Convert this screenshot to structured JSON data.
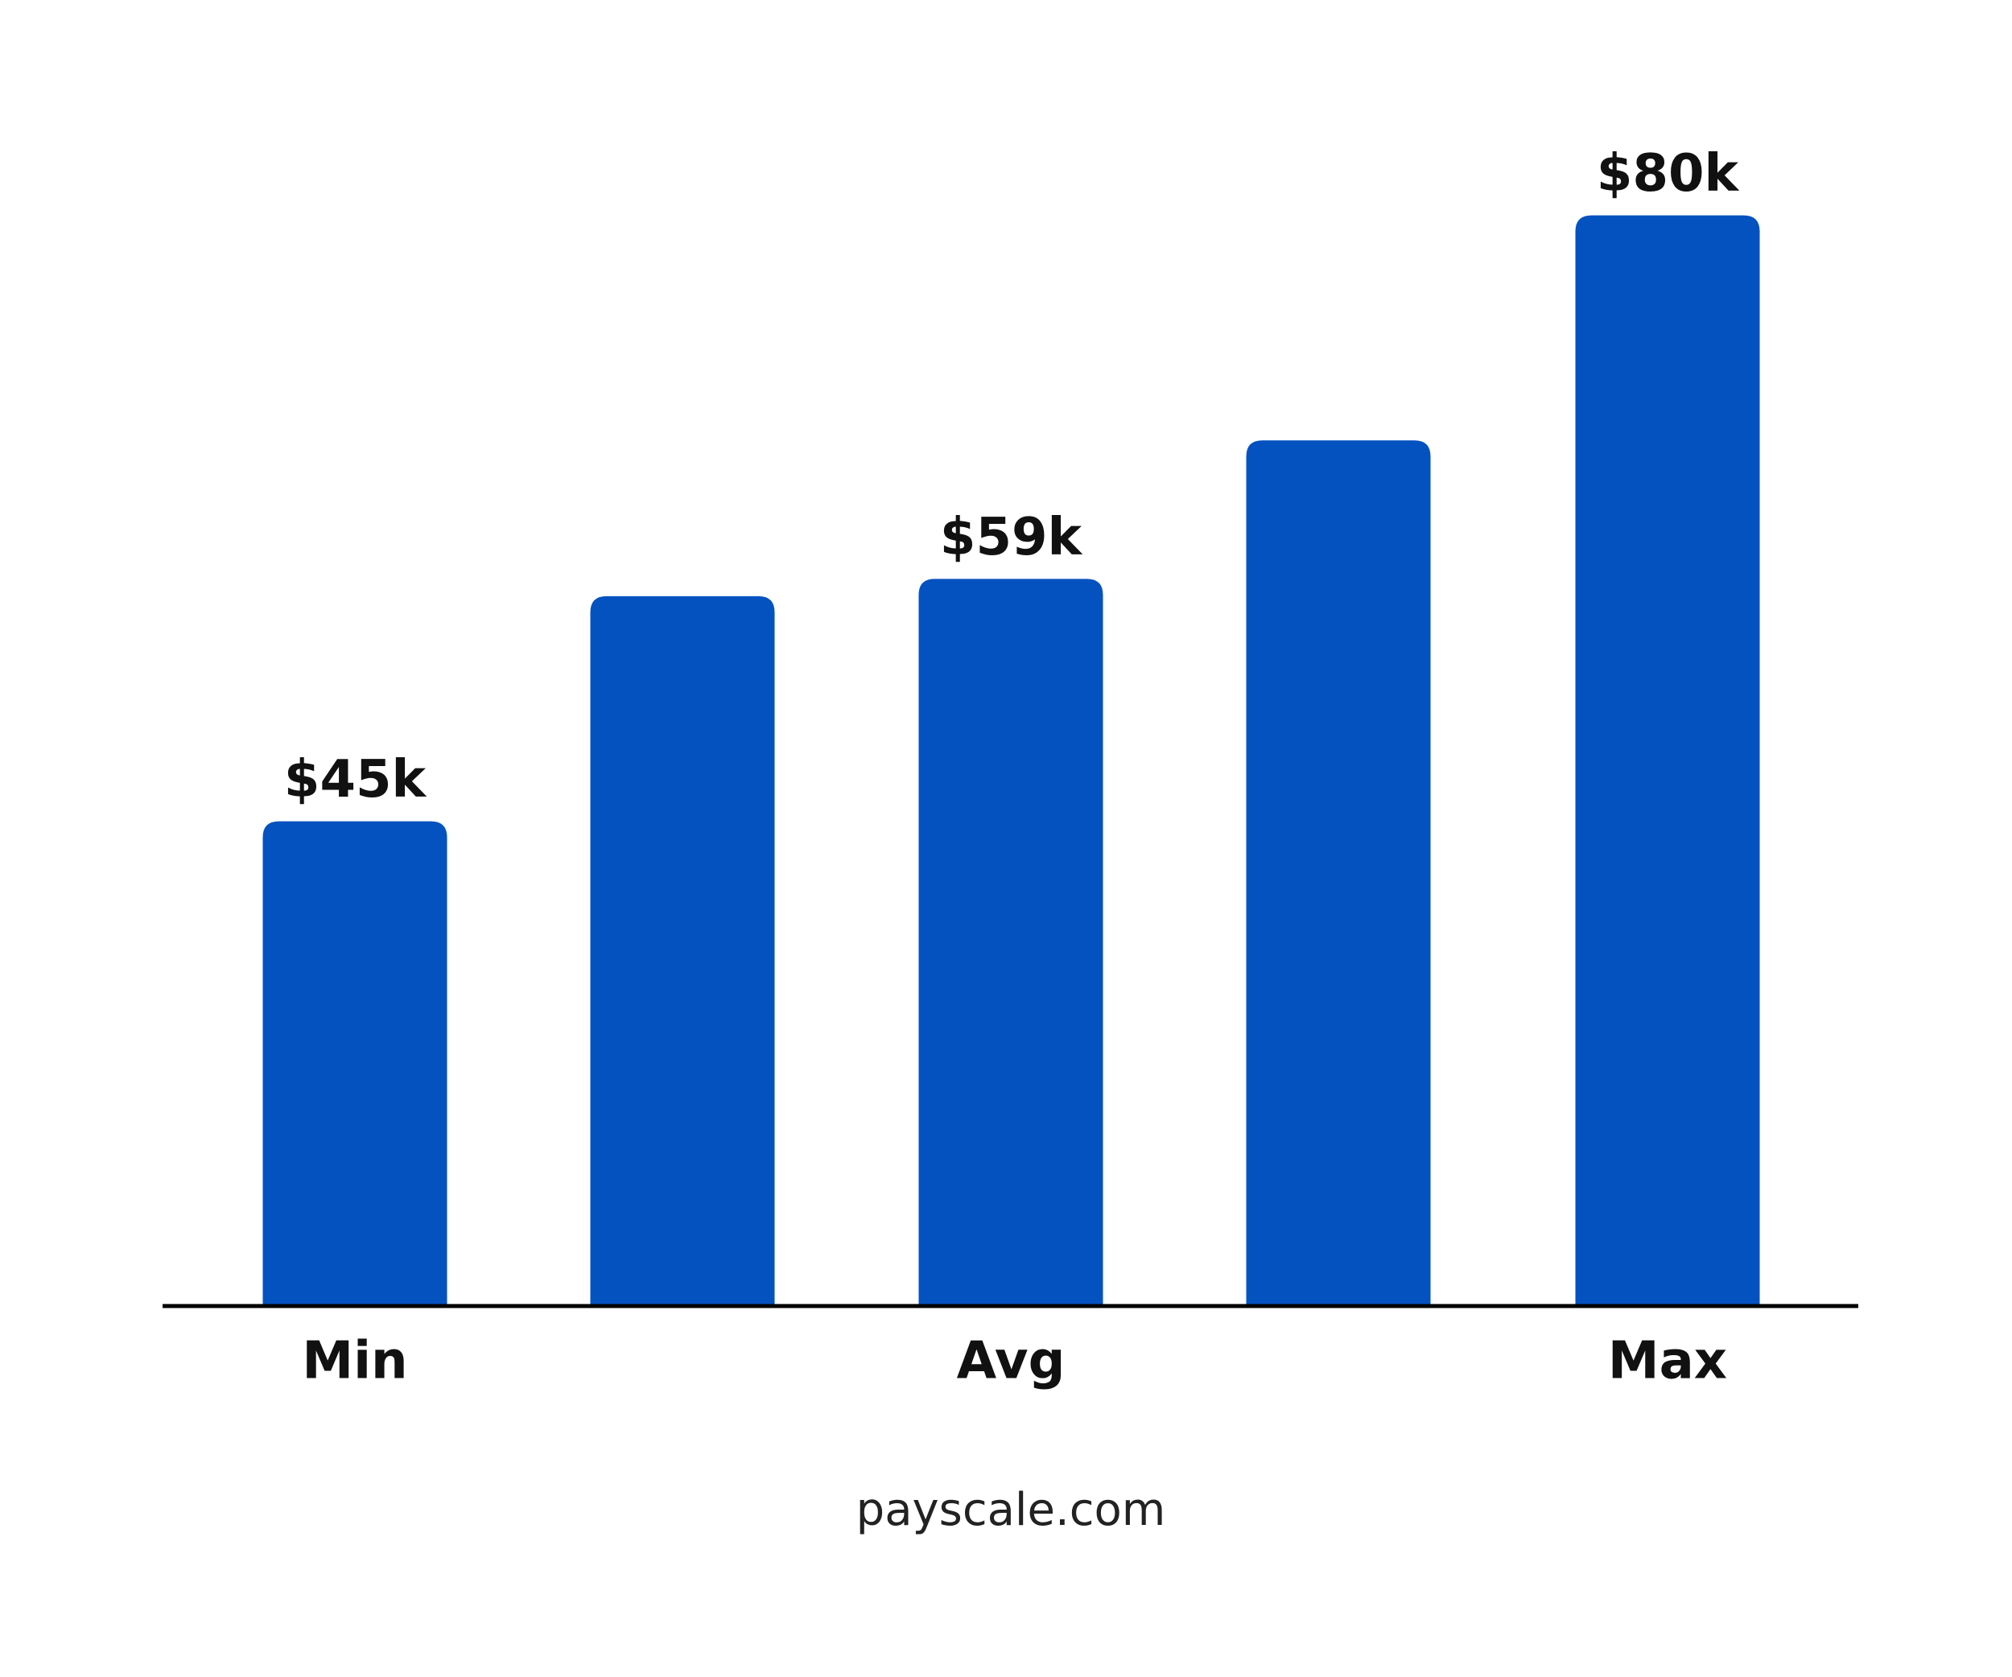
{
  "chart_data": {
    "type": "bar",
    "categories": [
      "Min",
      null,
      "Avg",
      null,
      "Max"
    ],
    "values": [
      45,
      58,
      59,
      67,
      80
    ],
    "value_labels": [
      "$45k",
      null,
      "$59k",
      null,
      "$80k"
    ],
    "color": "#0452c0",
    "ylim": [
      17,
      85
    ],
    "source": "payscale.com"
  }
}
